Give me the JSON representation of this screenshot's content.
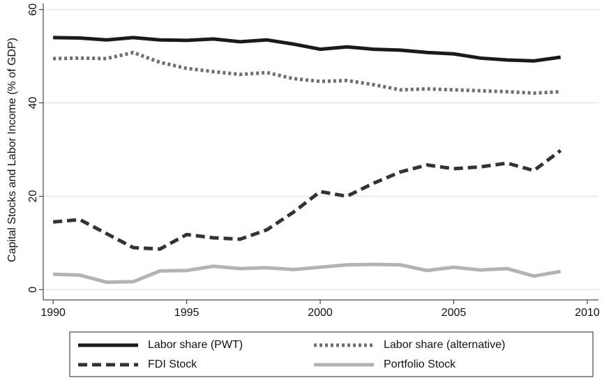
{
  "chart_data": {
    "type": "line",
    "y_label": "Capital Stocks and Labor Income (% of GDP)",
    "x": [
      1990,
      1991,
      1992,
      1993,
      1994,
      1995,
      1996,
      1997,
      1998,
      1999,
      2000,
      2001,
      2002,
      2003,
      2004,
      2005,
      2006,
      2007,
      2008,
      2009
    ],
    "series": [
      {
        "name": "Labor share (PWT)",
        "color": "#1a1a1a",
        "line_style": "solid",
        "values": [
          54,
          53.9,
          53.5,
          54,
          53.5,
          53.4,
          53.7,
          53.1,
          53.5,
          52.6,
          51.5,
          52,
          51.5,
          51.3,
          50.8,
          50.5,
          49.6,
          49.2,
          49,
          49.8
        ]
      },
      {
        "name": "Labor share (alternative)",
        "color": "#6e6e6e",
        "line_style": "dotted",
        "values": [
          49.5,
          49.6,
          49.5,
          50.8,
          48.7,
          47.4,
          46.7,
          46.1,
          46.5,
          45.2,
          44.6,
          44.8,
          43.9,
          42.8,
          43,
          42.8,
          42.6,
          42.4,
          42.1,
          42.4
        ]
      },
      {
        "name": "FDI Stock",
        "color": "#333333",
        "line_style": "dashed",
        "values": [
          14.5,
          15,
          12,
          9,
          8.7,
          11.8,
          11.1,
          10.8,
          12.8,
          16.6,
          21,
          20,
          22.8,
          25.2,
          26.7,
          25.9,
          26.3,
          27.1,
          25.5,
          29.8
        ]
      },
      {
        "name": "Portfolio Stock",
        "color": "#b3b3b3",
        "line_style": "solid",
        "values": [
          3.3,
          3.1,
          1.6,
          1.7,
          4,
          4.1,
          5,
          4.5,
          4.7,
          4.3,
          4.8,
          5.3,
          5.4,
          5.3,
          4.1,
          4.8,
          4.2,
          4.5,
          2.9,
          3.9
        ]
      }
    ],
    "xlim": [
      1989.63,
      2010.42
    ],
    "xticks": [
      1990,
      1995,
      2000,
      2005,
      2010
    ],
    "ylim": [
      -2.2,
      61.3
    ],
    "yticks": [
      0,
      20,
      40,
      60
    ],
    "grid": true,
    "legend_position": "bottom"
  }
}
